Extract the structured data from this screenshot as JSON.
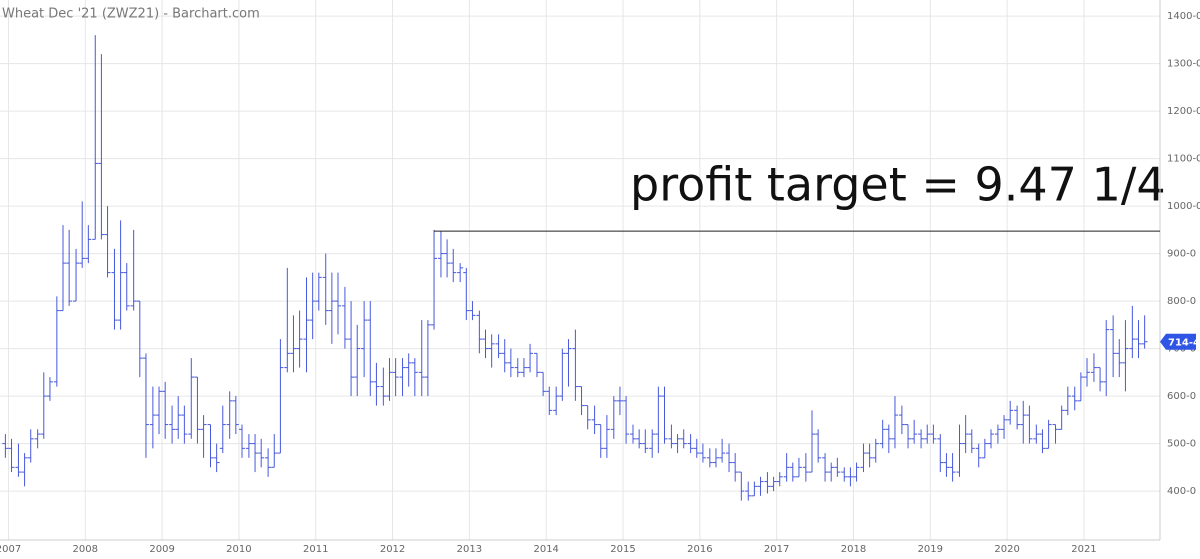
{
  "chart_data": {
    "type": "ohlc",
    "title": "Wheat Dec '21 (ZWZ21) - Barchart.com",
    "color": "#4658dc",
    "grid": true,
    "xlim": [
      2006.89,
      2021.99
    ],
    "ylim": [
      297,
      1434
    ],
    "xticks": [
      2007,
      2008,
      2009,
      2010,
      2011,
      2012,
      2013,
      2014,
      2015,
      2016,
      2017,
      2018,
      2019,
      2020,
      2021
    ],
    "yticks": [
      {
        "value": 400,
        "label": "400-0"
      },
      {
        "value": 500,
        "label": "500-0"
      },
      {
        "value": 600,
        "label": "600-0"
      },
      {
        "value": 700,
        "label": "700-0"
      },
      {
        "value": 800,
        "label": "800-0"
      },
      {
        "value": 900,
        "label": "900-0"
      },
      {
        "value": 1000,
        "label": "1000-0"
      },
      {
        "value": 1100,
        "label": "1100-0"
      },
      {
        "value": 1200,
        "label": "1200-0"
      },
      {
        "value": 1300,
        "label": "1300-0"
      },
      {
        "value": 1400,
        "label": "1400-0"
      }
    ],
    "x": [
      2006.96,
      2007.04,
      2007.13,
      2007.21,
      2007.29,
      2007.38,
      2007.46,
      2007.54,
      2007.63,
      2007.71,
      2007.79,
      2007.88,
      2007.96,
      2008.04,
      2008.13,
      2008.21,
      2008.29,
      2008.38,
      2008.46,
      2008.54,
      2008.63,
      2008.71,
      2008.79,
      2008.88,
      2008.96,
      2009.04,
      2009.13,
      2009.21,
      2009.29,
      2009.38,
      2009.46,
      2009.54,
      2009.63,
      2009.71,
      2009.79,
      2009.88,
      2009.96,
      2010.04,
      2010.13,
      2010.21,
      2010.29,
      2010.38,
      2010.46,
      2010.54,
      2010.63,
      2010.71,
      2010.79,
      2010.88,
      2010.96,
      2011.04,
      2011.13,
      2011.21,
      2011.29,
      2011.38,
      2011.46,
      2011.54,
      2011.63,
      2011.71,
      2011.79,
      2011.88,
      2011.96,
      2012.04,
      2012.13,
      2012.21,
      2012.29,
      2012.38,
      2012.46,
      2012.54,
      2012.63,
      2012.71,
      2012.79,
      2012.88,
      2012.96,
      2013.04,
      2013.13,
      2013.21,
      2013.29,
      2013.38,
      2013.46,
      2013.54,
      2013.63,
      2013.71,
      2013.79,
      2013.88,
      2013.96,
      2014.04,
      2014.13,
      2014.21,
      2014.29,
      2014.38,
      2014.46,
      2014.54,
      2014.63,
      2014.71,
      2014.79,
      2014.88,
      2014.96,
      2015.04,
      2015.13,
      2015.21,
      2015.29,
      2015.38,
      2015.46,
      2015.54,
      2015.63,
      2015.71,
      2015.79,
      2015.88,
      2015.96,
      2016.04,
      2016.13,
      2016.21,
      2016.29,
      2016.38,
      2016.46,
      2016.54,
      2016.63,
      2016.71,
      2016.79,
      2016.88,
      2016.96,
      2017.04,
      2017.13,
      2017.21,
      2017.29,
      2017.38,
      2017.46,
      2017.54,
      2017.63,
      2017.71,
      2017.79,
      2017.88,
      2017.96,
      2018.04,
      2018.13,
      2018.21,
      2018.29,
      2018.38,
      2018.46,
      2018.54,
      2018.63,
      2018.71,
      2018.79,
      2018.88,
      2018.96,
      2019.04,
      2019.13,
      2019.21,
      2019.29,
      2019.38,
      2019.46,
      2019.54,
      2019.63,
      2019.71,
      2019.79,
      2019.88,
      2019.96,
      2020.04,
      2020.13,
      2020.21,
      2020.29,
      2020.38,
      2020.46,
      2020.54,
      2020.63,
      2020.71,
      2020.79,
      2020.88,
      2020.96,
      2021.04,
      2021.13,
      2021.21,
      2021.29,
      2021.38,
      2021.46,
      2021.54,
      2021.63,
      2021.71,
      2021.79
    ],
    "open": [
      500,
      490,
      450,
      440,
      470,
      510,
      520,
      600,
      630,
      780,
      880,
      800,
      880,
      890,
      930,
      1090,
      940,
      860,
      760,
      860,
      790,
      800,
      680,
      540,
      560,
      610,
      540,
      530,
      560,
      520,
      640,
      530,
      540,
      470,
      490,
      540,
      590,
      530,
      490,
      500,
      480,
      470,
      450,
      480,
      660,
      690,
      700,
      720,
      760,
      800,
      850,
      780,
      800,
      790,
      720,
      640,
      700,
      760,
      630,
      620,
      600,
      650,
      640,
      660,
      670,
      650,
      640,
      750,
      890,
      900,
      880,
      860,
      860,
      780,
      770,
      720,
      700,
      710,
      690,
      670,
      660,
      650,
      660,
      690,
      650,
      610,
      570,
      600,
      690,
      700,
      620,
      580,
      550,
      540,
      490,
      530,
      590,
      590,
      520,
      510,
      500,
      490,
      520,
      600,
      510,
      500,
      510,
      500,
      490,
      480,
      470,
      460,
      470,
      480,
      460,
      440,
      400,
      390,
      410,
      420,
      410,
      420,
      430,
      450,
      430,
      450,
      440,
      520,
      470,
      440,
      450,
      440,
      430,
      430,
      450,
      480,
      470,
      500,
      530,
      510,
      560,
      540,
      510,
      520,
      510,
      520,
      510,
      460,
      450,
      440,
      500,
      520,
      490,
      470,
      500,
      520,
      530,
      550,
      570,
      540,
      560,
      510,
      520,
      490,
      540,
      530,
      570,
      600,
      590,
      640,
      650,
      660,
      630,
      740,
      690,
      670,
      700,
      720,
      710
    ],
    "high": [
      520,
      510,
      500,
      480,
      530,
      530,
      650,
      640,
      810,
      960,
      950,
      910,
      1010,
      960,
      1360,
      1320,
      1000,
      910,
      970,
      880,
      950,
      800,
      690,
      620,
      620,
      630,
      580,
      600,
      580,
      680,
      640,
      560,
      540,
      500,
      580,
      610,
      600,
      540,
      520,
      520,
      510,
      490,
      520,
      720,
      870,
      770,
      780,
      850,
      860,
      860,
      900,
      860,
      860,
      830,
      800,
      750,
      800,
      800,
      670,
      660,
      680,
      680,
      680,
      690,
      680,
      760,
      760,
      950,
      947,
      930,
      910,
      880,
      870,
      800,
      780,
      740,
      730,
      730,
      720,
      700,
      680,
      680,
      710,
      690,
      650,
      620,
      620,
      700,
      720,
      740,
      620,
      580,
      580,
      540,
      560,
      600,
      620,
      600,
      540,
      530,
      530,
      530,
      620,
      620,
      540,
      520,
      530,
      520,
      510,
      500,
      490,
      490,
      510,
      500,
      480,
      440,
      420,
      420,
      430,
      440,
      430,
      440,
      480,
      460,
      470,
      480,
      570,
      530,
      480,
      460,
      470,
      450,
      450,
      460,
      500,
      500,
      510,
      550,
      540,
      600,
      580,
      540,
      550,
      530,
      540,
      540,
      520,
      480,
      480,
      540,
      560,
      530,
      500,
      510,
      530,
      540,
      560,
      590,
      580,
      590,
      580,
      540,
      530,
      550,
      540,
      580,
      620,
      620,
      650,
      680,
      690,
      660,
      760,
      770,
      720,
      760,
      790,
      760,
      770
    ],
    "low": [
      470,
      440,
      430,
      410,
      460,
      490,
      510,
      590,
      620,
      780,
      790,
      800,
      870,
      880,
      930,
      930,
      850,
      740,
      740,
      780,
      780,
      640,
      470,
      490,
      520,
      510,
      500,
      510,
      500,
      510,
      500,
      470,
      450,
      440,
      480,
      510,
      520,
      470,
      470,
      440,
      450,
      430,
      450,
      480,
      650,
      650,
      660,
      650,
      720,
      780,
      750,
      710,
      730,
      700,
      600,
      600,
      640,
      600,
      580,
      580,
      590,
      600,
      600,
      620,
      600,
      600,
      600,
      740,
      850,
      850,
      840,
      840,
      760,
      760,
      690,
      680,
      660,
      680,
      650,
      640,
      640,
      640,
      650,
      640,
      600,
      560,
      560,
      590,
      620,
      590,
      560,
      530,
      520,
      470,
      470,
      510,
      560,
      500,
      500,
      490,
      480,
      470,
      480,
      500,
      490,
      480,
      490,
      480,
      470,
      460,
      450,
      450,
      460,
      440,
      420,
      380,
      380,
      390,
      390,
      395,
      400,
      410,
      420,
      420,
      430,
      420,
      440,
      460,
      420,
      420,
      430,
      420,
      410,
      420,
      440,
      450,
      460,
      490,
      480,
      490,
      520,
      490,
      500,
      490,
      500,
      500,
      440,
      430,
      420,
      430,
      480,
      480,
      450,
      470,
      490,
      500,
      510,
      540,
      530,
      500,
      500,
      500,
      480,
      490,
      500,
      530,
      560,
      570,
      590,
      620,
      630,
      610,
      600,
      640,
      640,
      610,
      680,
      680,
      700
    ],
    "close": [
      490,
      450,
      440,
      470,
      510,
      520,
      600,
      630,
      780,
      880,
      800,
      880,
      890,
      930,
      1090,
      940,
      860,
      760,
      860,
      790,
      800,
      680,
      540,
      560,
      610,
      540,
      530,
      560,
      520,
      640,
      530,
      540,
      470,
      460,
      540,
      590,
      540,
      490,
      500,
      480,
      470,
      450,
      480,
      660,
      690,
      700,
      720,
      760,
      800,
      850,
      780,
      800,
      790,
      720,
      640,
      700,
      760,
      630,
      620,
      600,
      650,
      640,
      660,
      670,
      650,
      640,
      750,
      890,
      900,
      880,
      860,
      870,
      780,
      770,
      720,
      700,
      710,
      690,
      670,
      660,
      650,
      660,
      690,
      650,
      610,
      570,
      600,
      690,
      700,
      620,
      580,
      550,
      540,
      490,
      530,
      590,
      590,
      520,
      510,
      500,
      490,
      520,
      600,
      510,
      500,
      510,
      500,
      490,
      480,
      470,
      460,
      470,
      480,
      460,
      440,
      400,
      390,
      410,
      420,
      410,
      420,
      430,
      450,
      430,
      450,
      440,
      520,
      470,
      440,
      450,
      440,
      430,
      430,
      450,
      480,
      470,
      500,
      530,
      510,
      560,
      540,
      510,
      520,
      510,
      520,
      510,
      460,
      450,
      440,
      500,
      520,
      490,
      470,
      500,
      520,
      530,
      550,
      570,
      540,
      560,
      510,
      520,
      490,
      540,
      530,
      570,
      600,
      590,
      640,
      650,
      660,
      630,
      740,
      690,
      670,
      700,
      720,
      710,
      714.5
    ],
    "last_price": {
      "value": 714.5,
      "label": "714-4"
    },
    "target_line": {
      "value": 947.25,
      "x_start": 2012.54
    },
    "annotation": "profit target = 9.47 1/4"
  }
}
